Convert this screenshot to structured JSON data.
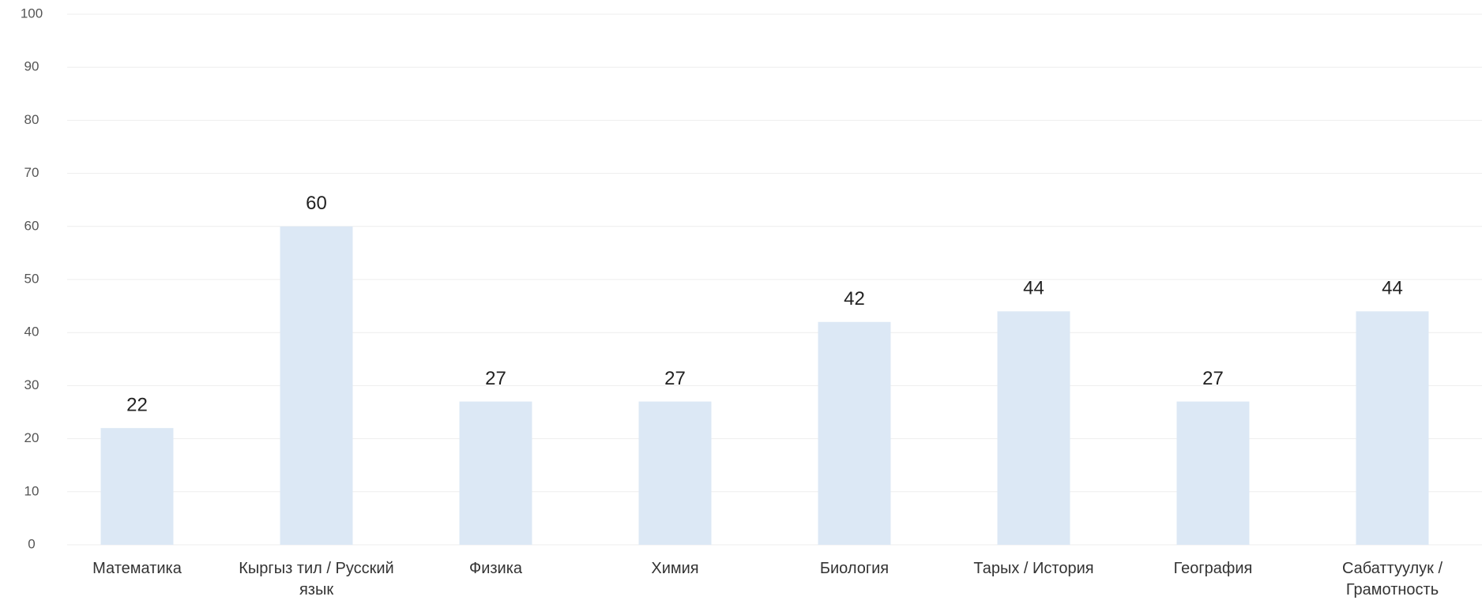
{
  "chart_data": {
    "type": "bar",
    "categories": [
      "Математика",
      "Кыргыз тил / Русский язык",
      "Физика",
      "Химия",
      "Биология",
      "Тарых / История",
      "География",
      "Сабаттуулук / Грамотность"
    ],
    "values": [
      22,
      60,
      27,
      27,
      42,
      44,
      27,
      44
    ],
    "color": "#dce8f5",
    "ylim": [
      0,
      100
    ],
    "yticks": [
      0,
      10,
      20,
      30,
      40,
      50,
      60,
      70,
      80,
      90,
      100
    ],
    "grid": true
  }
}
